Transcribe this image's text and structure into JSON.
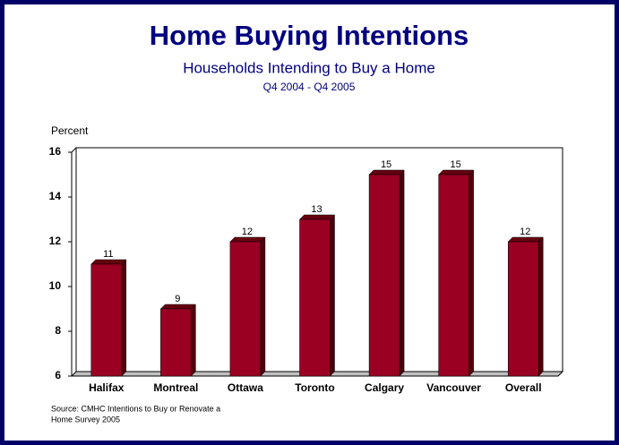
{
  "chart_data": {
    "type": "bar",
    "title": "Home Buying Intentions",
    "subtitle": "Households Intending to Buy a Home",
    "period": "Q4 2004 - Q4 2005",
    "y_label": "Percent",
    "categories": [
      "Halifax",
      "Montreal",
      "Ottawa",
      "Toronto",
      "Calgary",
      "Vancouver",
      "Overall"
    ],
    "values": [
      11,
      9,
      12,
      13,
      15,
      15,
      12
    ],
    "color": "#990022",
    "ylim": [
      6,
      16
    ],
    "yticks": [
      6,
      8,
      10,
      12,
      14,
      16
    ],
    "source": [
      "Source: CMHC Intentions to Buy or Renovate a",
      "Home Survey 2005"
    ]
  }
}
